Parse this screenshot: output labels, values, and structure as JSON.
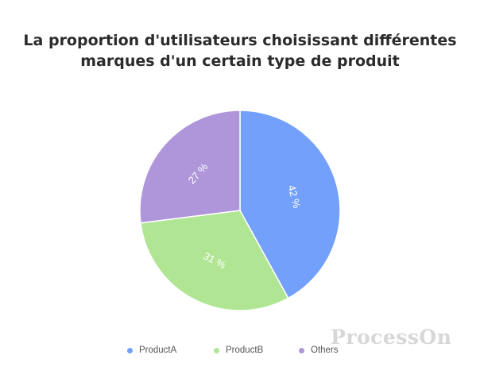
{
  "chart_data": {
    "type": "pie",
    "title_lines": [
      "La proportion d'utilisateurs choisissant différentes",
      "marques d'un certain type de produit"
    ],
    "categories": [
      "ProductA",
      "ProductB",
      "Others"
    ],
    "values": [
      42,
      31,
      27
    ],
    "labels": [
      "42 %",
      "31 %",
      "27 %"
    ],
    "colors": [
      "#73a0fa",
      "#b0e593",
      "#af95da"
    ],
    "legend_position": "bottom"
  },
  "legend": {
    "items": [
      {
        "label": "ProductA",
        "color": "#73a0fa"
      },
      {
        "label": "ProductB",
        "color": "#b0e593"
      },
      {
        "label": "Others",
        "color": "#af95da"
      }
    ]
  },
  "watermark": {
    "text": "ProcessOn"
  }
}
